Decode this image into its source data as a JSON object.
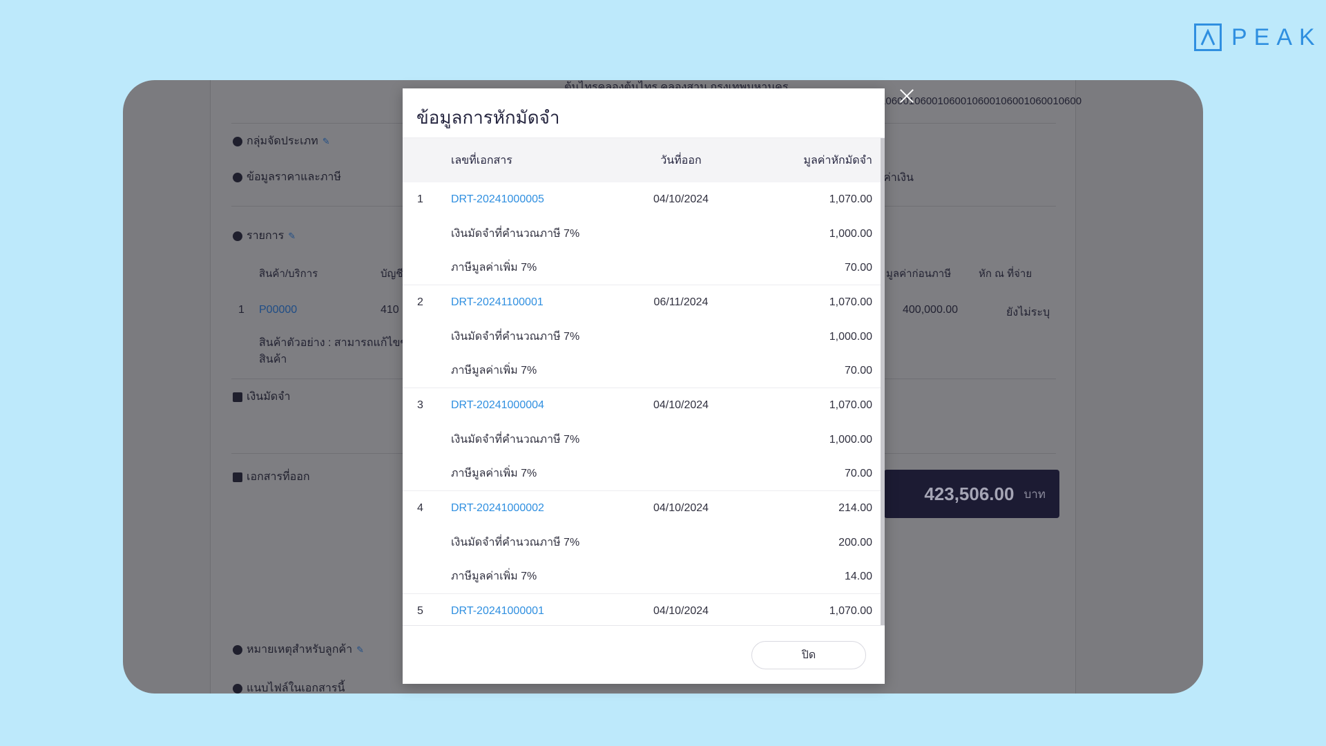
{
  "brand": {
    "name": "PEAK",
    "color": "#2f8fe0"
  },
  "background": {
    "address_fragment": "ต้นไทรคลองต้นไทร คลองสาน กรุงเทพมหานคร",
    "tax_id_fragment": "06001060010600106001060010600106001060010600",
    "sections": {
      "category_group": "กลุ่มจัดประเภท",
      "price_tax_info": "ข้อมูลราคาและภาษี",
      "items": "รายการ",
      "deposit": "เงินมัดจำ",
      "issued_docs": "เอกสารที่ออก",
      "customer_note": "หมายเหตุสำหรับลูกค้า",
      "attachments": "แนบไฟล์ในเอกสารนี้"
    },
    "price_col_fragment": "ค่าเงิน",
    "items_table": {
      "col_product": "สินค้า/บริการ",
      "col_account": "บัญชี",
      "col_pretax": "มูลค่าก่อนภาษี",
      "col_withholding": "หัก ณ ที่จ่าย",
      "row_no": "1",
      "row_code": "P00000",
      "row_account": "410",
      "row_pretax": "400,000.00",
      "row_withholding": "ยังไม่ระบุ",
      "row_desc_1": "สินค้าตัวอย่าง : สามารถแก้ไขข้อ",
      "row_desc_2": "สินค้า"
    },
    "total": {
      "amount": "423,506.00",
      "unit": "บาท"
    }
  },
  "modal": {
    "title": "ข้อมูลการหักมัดจำ",
    "columns": {
      "doc_no": "เลขที่เอกสาร",
      "issue_date": "วันที่ออก",
      "deduct_value": "มูลค่าหักมัดจำ"
    },
    "groups": [
      {
        "no": "1",
        "doc": "DRT-20241000005",
        "date": "04/10/2024",
        "amount": "1,070.00",
        "lines": [
          {
            "label": "เงินมัดจำที่คำนวณภาษี 7%",
            "amount": "1,000.00"
          },
          {
            "label": "ภาษีมูลค่าเพิ่ม 7%",
            "amount": "70.00"
          }
        ]
      },
      {
        "no": "2",
        "doc": "DRT-20241100001",
        "date": "06/11/2024",
        "amount": "1,070.00",
        "lines": [
          {
            "label": "เงินมัดจำที่คำนวณภาษี 7%",
            "amount": "1,000.00"
          },
          {
            "label": "ภาษีมูลค่าเพิ่ม 7%",
            "amount": "70.00"
          }
        ]
      },
      {
        "no": "3",
        "doc": "DRT-20241000004",
        "date": "04/10/2024",
        "amount": "1,070.00",
        "lines": [
          {
            "label": "เงินมัดจำที่คำนวณภาษี 7%",
            "amount": "1,000.00"
          },
          {
            "label": "ภาษีมูลค่าเพิ่ม 7%",
            "amount": "70.00"
          }
        ]
      },
      {
        "no": "4",
        "doc": "DRT-20241000002",
        "date": "04/10/2024",
        "amount": "214.00",
        "lines": [
          {
            "label": "เงินมัดจำที่คำนวณภาษี 7%",
            "amount": "200.00"
          },
          {
            "label": "ภาษีมูลค่าเพิ่ม 7%",
            "amount": "14.00"
          }
        ]
      },
      {
        "no": "5",
        "doc": "DRT-20241000001",
        "date": "04/10/2024",
        "amount": "1,070.00",
        "lines": []
      }
    ],
    "close_button": "ปิด"
  }
}
